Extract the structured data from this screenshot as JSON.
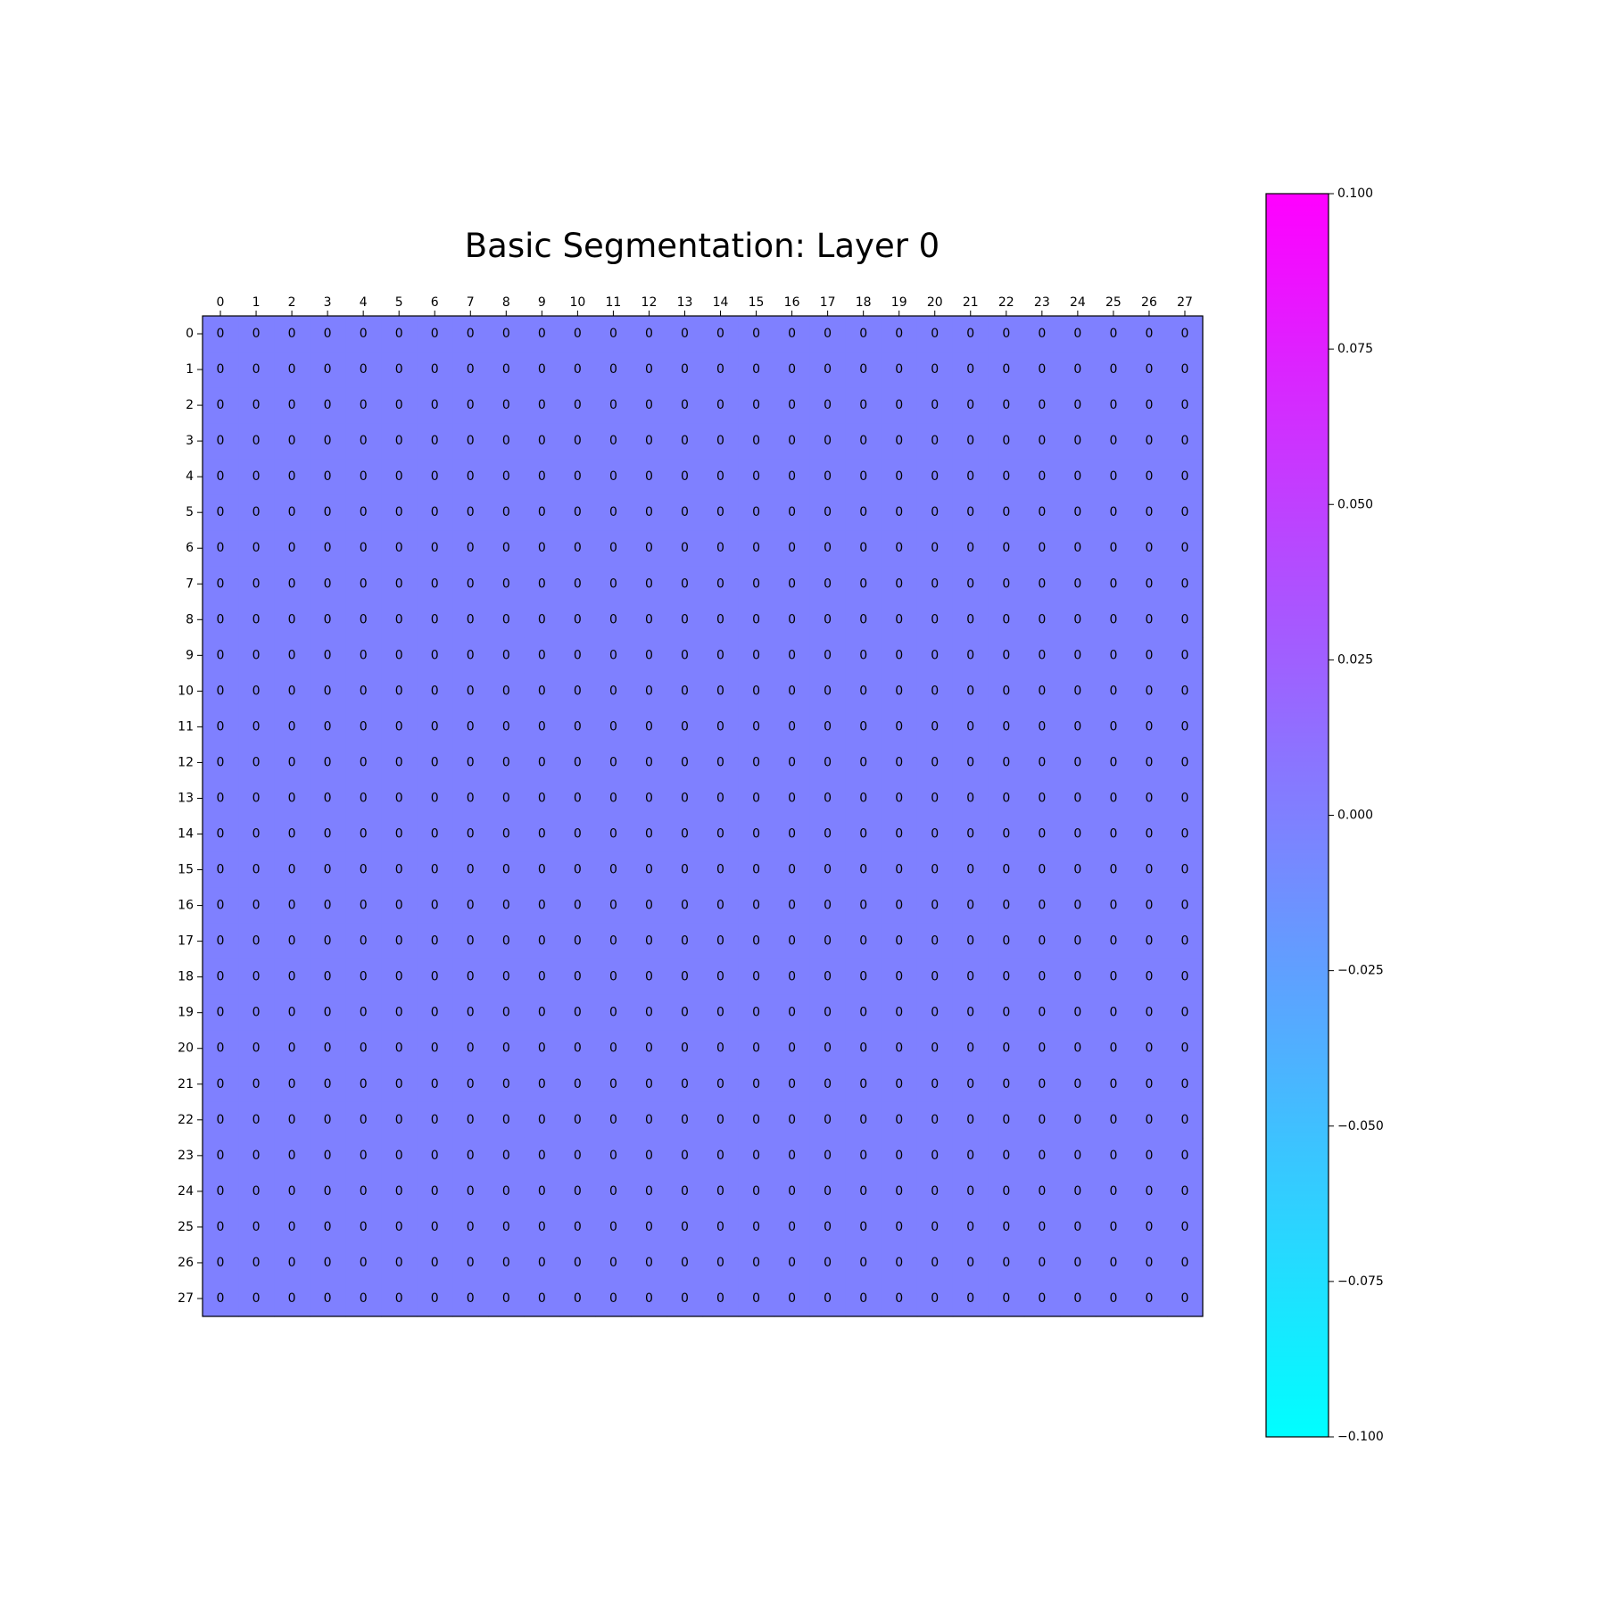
{
  "chart_data": {
    "type": "heatmap",
    "title": "Basic Segmentation: Layer 0",
    "x_ticks": [
      "0",
      "1",
      "2",
      "3",
      "4",
      "5",
      "6",
      "7",
      "8",
      "9",
      "10",
      "11",
      "12",
      "13",
      "14",
      "15",
      "16",
      "17",
      "18",
      "19",
      "20",
      "21",
      "22",
      "23",
      "24",
      "25",
      "26",
      "27"
    ],
    "y_ticks": [
      "0",
      "1",
      "2",
      "3",
      "4",
      "5",
      "6",
      "7",
      "8",
      "9",
      "10",
      "11",
      "12",
      "13",
      "14",
      "15",
      "16",
      "17",
      "18",
      "19",
      "20",
      "21",
      "22",
      "23",
      "24",
      "25",
      "26",
      "27"
    ],
    "rows": 28,
    "cols": 28,
    "fill_value": 0,
    "cell_label": "0",
    "colormap": "cool",
    "colormap_colors": [
      "#00ffff",
      "#ff00ff"
    ],
    "cell_color": "#7f80ff",
    "colorbar": {
      "vmin": -0.1,
      "vmax": 0.1,
      "ticks": [
        0.1,
        0.075,
        0.05,
        0.025,
        0.0,
        -0.025,
        -0.05,
        -0.075,
        -0.1
      ],
      "tick_labels": [
        "0.100",
        "0.075",
        "0.050",
        "0.025",
        "0.000",
        "−0.025",
        "−0.050",
        "−0.075",
        "−0.100"
      ]
    },
    "grid": false,
    "x_axis_position": "top"
  }
}
